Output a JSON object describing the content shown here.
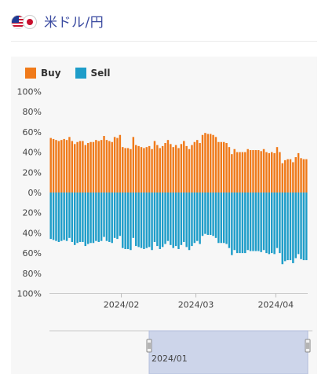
{
  "header": {
    "pair_label": "米ドル/円",
    "flags": [
      "us-flag-icon",
      "jp-flag-icon"
    ]
  },
  "legend": {
    "buy_label": "Buy",
    "sell_label": "Sell"
  },
  "colors": {
    "buy": "#f07a1a",
    "sell": "#1e9dc9",
    "navigator_fill": "#cdd5ea"
  },
  "navigator": {
    "label": "2024/01"
  },
  "chart_data": {
    "type": "bar",
    "stacked_diverging": true,
    "y_ticks_top": [
      "100%",
      "80%",
      "60%",
      "40%",
      "20%",
      "0%"
    ],
    "y_ticks_bottom": [
      "20%",
      "40%",
      "60%",
      "80%",
      "100%"
    ],
    "ylim": [
      -100,
      100
    ],
    "x_ticks": [
      "2024/02",
      "2024/03",
      "2024/04"
    ],
    "x_tick_index": [
      27,
      55,
      85
    ],
    "series": [
      {
        "name": "Buy",
        "values": [
          54,
          53,
          52,
          51,
          52,
          53,
          52,
          55,
          51,
          48,
          50,
          51,
          51,
          47,
          49,
          50,
          50,
          52,
          51,
          52,
          56,
          52,
          51,
          50,
          55,
          54,
          57,
          45,
          44,
          44,
          43,
          55,
          47,
          46,
          45,
          44,
          45,
          46,
          43,
          51,
          47,
          44,
          46,
          49,
          52,
          48,
          45,
          47,
          44,
          48,
          51,
          46,
          43,
          47,
          50,
          52,
          49,
          57,
          59,
          58,
          58,
          57,
          55,
          50,
          50,
          50,
          49,
          45,
          38,
          43,
          40,
          40,
          40,
          40,
          43,
          42,
          42,
          42,
          42,
          41,
          43,
          40,
          39,
          40,
          39,
          45,
          40,
          29,
          32,
          33,
          33,
          30,
          35,
          39,
          34,
          33,
          33
        ]
      },
      {
        "name": "Sell",
        "values": [
          -46,
          -47,
          -48,
          -49,
          -48,
          -47,
          -48,
          -45,
          -49,
          -52,
          -50,
          -49,
          -49,
          -53,
          -51,
          -50,
          -50,
          -48,
          -49,
          -48,
          -44,
          -48,
          -49,
          -50,
          -45,
          -46,
          -43,
          -55,
          -56,
          -56,
          -57,
          -45,
          -53,
          -54,
          -55,
          -56,
          -55,
          -54,
          -57,
          -49,
          -53,
          -56,
          -54,
          -51,
          -48,
          -52,
          -55,
          -53,
          -56,
          -52,
          -49,
          -54,
          -57,
          -53,
          -50,
          -48,
          -51,
          -43,
          -41,
          -42,
          -42,
          -43,
          -45,
          -50,
          -50,
          -50,
          -51,
          -55,
          -62,
          -57,
          -60,
          -60,
          -60,
          -60,
          -57,
          -58,
          -58,
          -58,
          -58,
          -59,
          -57,
          -60,
          -61,
          -60,
          -61,
          -55,
          -60,
          -71,
          -68,
          -67,
          -67,
          -70,
          -65,
          -61,
          -66,
          -67,
          -67
        ]
      }
    ]
  }
}
